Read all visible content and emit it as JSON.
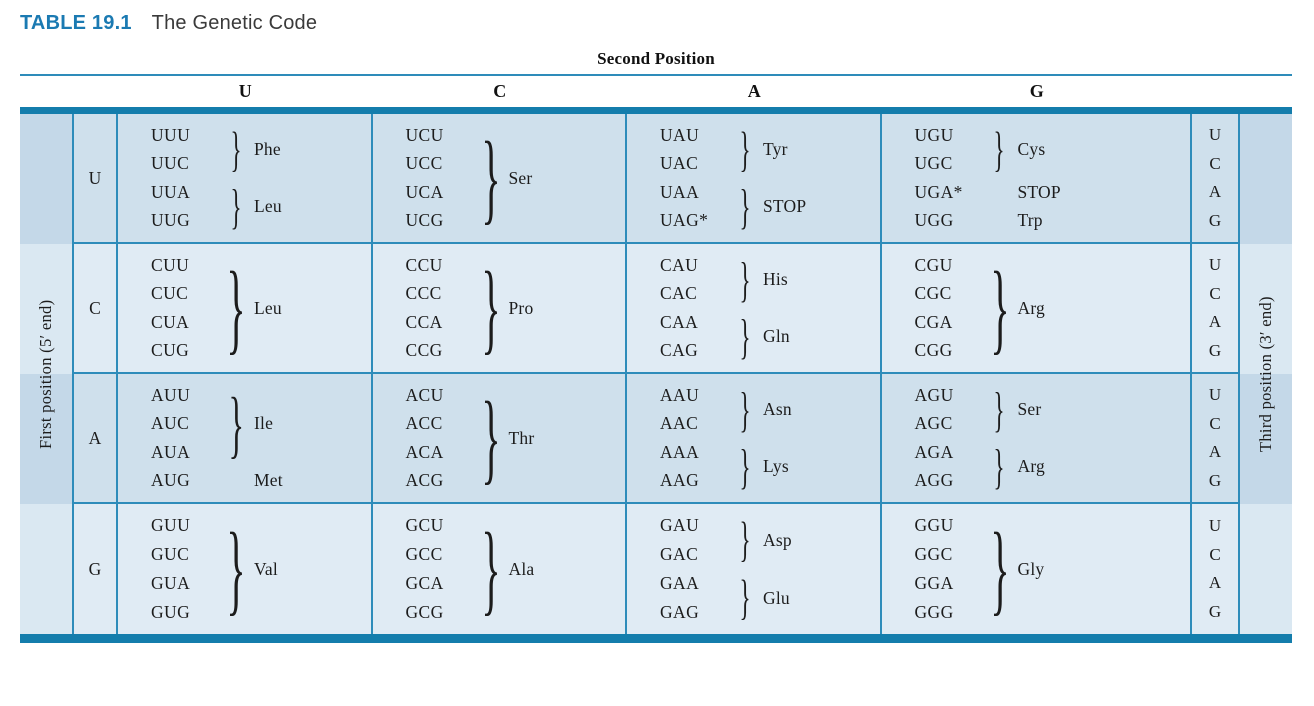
{
  "title": {
    "label": "TABLE 19.1",
    "text": "The Genetic Code"
  },
  "second_position_label": "Second Position",
  "column_headers": [
    "U",
    "C",
    "A",
    "G"
  ],
  "first_position_label": "First position (5′ end)",
  "third_position_label": "Third position (3′ end)",
  "third_position_letters": [
    "U",
    "C",
    "A",
    "G"
  ],
  "colors": {
    "titleBlue": "#1b7ab2",
    "bar": "#147dac",
    "border": "#2e8cba",
    "rowDark": "#cfe0ec",
    "rowLight": "#e0ebf4",
    "stripDark": "#c4d8e8",
    "stripLight": "#dae8f2"
  },
  "rows": [
    {
      "label": "U",
      "cells": [
        {
          "groups": [
            {
              "codons": [
                "UUU",
                "UUC"
              ],
              "brace": true,
              "amino": "Phe"
            },
            {
              "codons": [
                "UUA",
                "UUG"
              ],
              "brace": true,
              "amino": "Leu"
            }
          ]
        },
        {
          "groups": [
            {
              "codons": [
                "UCU",
                "UCC",
                "UCA",
                "UCG"
              ],
              "brace": true,
              "amino": "Ser"
            }
          ]
        },
        {
          "groups": [
            {
              "codons": [
                "UAU",
                "UAC"
              ],
              "brace": true,
              "amino": "Tyr"
            },
            {
              "codons": [
                "UAA",
                "UAG*"
              ],
              "brace": true,
              "amino": "STOP"
            }
          ]
        },
        {
          "groups": [
            {
              "codons": [
                "UGU",
                "UGC"
              ],
              "brace": true,
              "amino": "Cys"
            },
            {
              "codons": [
                "UGA*"
              ],
              "brace": false,
              "amino": "STOP"
            },
            {
              "codons": [
                "UGG"
              ],
              "brace": false,
              "amino": "Trp"
            }
          ]
        }
      ]
    },
    {
      "label": "C",
      "cells": [
        {
          "groups": [
            {
              "codons": [
                "CUU",
                "CUC",
                "CUA",
                "CUG"
              ],
              "brace": true,
              "amino": "Leu"
            }
          ]
        },
        {
          "groups": [
            {
              "codons": [
                "CCU",
                "CCC",
                "CCA",
                "CCG"
              ],
              "brace": true,
              "amino": "Pro"
            }
          ]
        },
        {
          "groups": [
            {
              "codons": [
                "CAU",
                "CAC"
              ],
              "brace": true,
              "amino": "His"
            },
            {
              "codons": [
                "CAA",
                "CAG"
              ],
              "brace": true,
              "amino": "Gln"
            }
          ]
        },
        {
          "groups": [
            {
              "codons": [
                "CGU",
                "CGC",
                "CGA",
                "CGG"
              ],
              "brace": true,
              "amino": "Arg"
            }
          ]
        }
      ]
    },
    {
      "label": "A",
      "cells": [
        {
          "groups": [
            {
              "codons": [
                "AUU",
                "AUC",
                "AUA"
              ],
              "brace": true,
              "amino": "Ile"
            },
            {
              "codons": [
                "AUG"
              ],
              "brace": false,
              "amino": "Met"
            }
          ]
        },
        {
          "groups": [
            {
              "codons": [
                "ACU",
                "ACC",
                "ACA",
                "ACG"
              ],
              "brace": true,
              "amino": "Thr"
            }
          ]
        },
        {
          "groups": [
            {
              "codons": [
                "AAU",
                "AAC"
              ],
              "brace": true,
              "amino": "Asn"
            },
            {
              "codons": [
                "AAA",
                "AAG"
              ],
              "brace": true,
              "amino": "Lys"
            }
          ]
        },
        {
          "groups": [
            {
              "codons": [
                "AGU",
                "AGC"
              ],
              "brace": true,
              "amino": "Ser"
            },
            {
              "codons": [
                "AGA",
                "AGG"
              ],
              "brace": true,
              "amino": "Arg"
            }
          ]
        }
      ]
    },
    {
      "label": "G",
      "cells": [
        {
          "groups": [
            {
              "codons": [
                "GUU",
                "GUC",
                "GUA",
                "GUG"
              ],
              "brace": true,
              "amino": "Val"
            }
          ]
        },
        {
          "groups": [
            {
              "codons": [
                "GCU",
                "GCC",
                "GCA",
                "GCG"
              ],
              "brace": true,
              "amino": "Ala"
            }
          ]
        },
        {
          "groups": [
            {
              "codons": [
                "GAU",
                "GAC"
              ],
              "brace": true,
              "amino": "Asp"
            },
            {
              "codons": [
                "GAA",
                "GAG"
              ],
              "brace": true,
              "amino": "Glu"
            }
          ]
        },
        {
          "groups": [
            {
              "codons": [
                "GGU",
                "GGC",
                "GGA",
                "GGG"
              ],
              "brace": true,
              "amino": "Gly"
            }
          ]
        }
      ]
    }
  ]
}
